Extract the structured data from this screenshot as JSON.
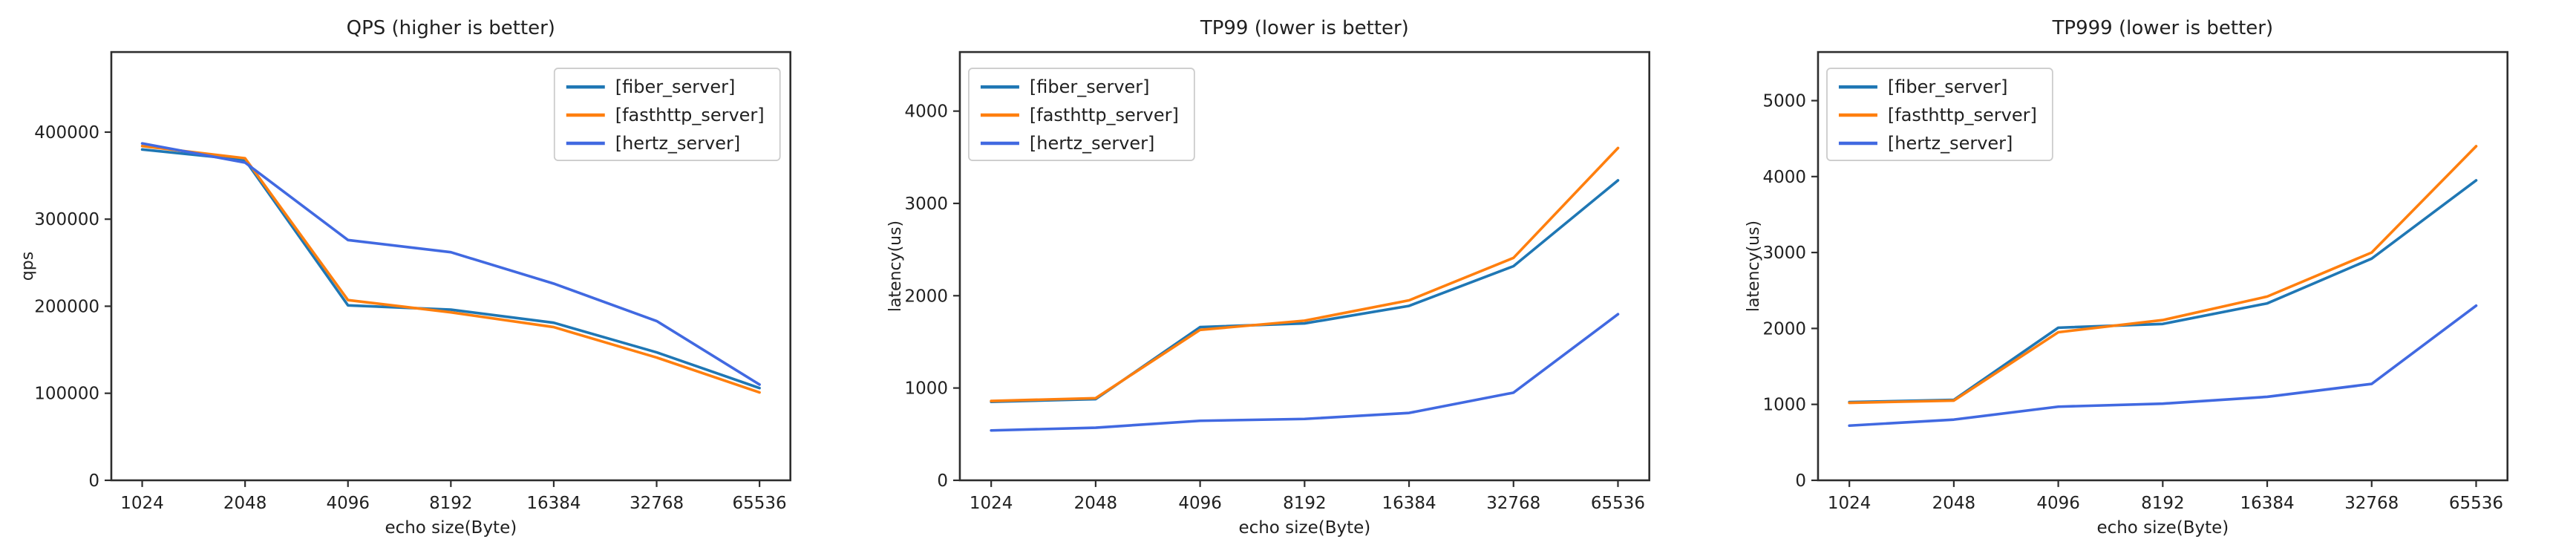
{
  "figure": {
    "background_color": "#ffffff",
    "text_color": "#212121",
    "spine_color": "#2e2e2e"
  },
  "chart_data": [
    {
      "id": "qps",
      "type": "line",
      "title": "QPS (higher is better)",
      "xlabel": "echo size(Byte)",
      "ylabel": "qps",
      "categories": [
        "1024",
        "2048",
        "4096",
        "8192",
        "16384",
        "32768",
        "65536"
      ],
      "yticks": [
        0,
        100000,
        200000,
        300000,
        400000
      ],
      "ylim": [
        0,
        492000
      ],
      "xlim_units": [
        -0.3,
        6.3
      ],
      "grid": false,
      "legend_position": "upper-right",
      "series": [
        {
          "name": "[fiber_server]",
          "color": "#1f77b4",
          "values": [
            380000,
            368000,
            201000,
            196000,
            181000,
            147000,
            106000
          ]
        },
        {
          "name": "[fasthttp_server]",
          "color": "#ff7f0e",
          "values": [
            384000,
            370000,
            207000,
            193000,
            176000,
            141000,
            101000
          ]
        },
        {
          "name": "[hertz_server]",
          "color": "#4169e1",
          "values": [
            387000,
            365000,
            276000,
            262000,
            226000,
            183000,
            110000
          ]
        }
      ]
    },
    {
      "id": "tp99",
      "type": "line",
      "title": "TP99 (lower is better)",
      "xlabel": "echo size(Byte)",
      "ylabel": "latency(us)",
      "categories": [
        "1024",
        "2048",
        "4096",
        "8192",
        "16384",
        "32768",
        "65536"
      ],
      "yticks": [
        0,
        1000,
        2000,
        3000,
        4000
      ],
      "ylim": [
        0,
        4640
      ],
      "xlim_units": [
        -0.3,
        6.3
      ],
      "grid": false,
      "legend_position": "upper-left",
      "series": [
        {
          "name": "[fiber_server]",
          "color": "#1f77b4",
          "values": [
            850,
            880,
            1660,
            1700,
            1890,
            2320,
            3250
          ]
        },
        {
          "name": "[fasthttp_server]",
          "color": "#ff7f0e",
          "values": [
            860,
            890,
            1630,
            1730,
            1950,
            2410,
            3600
          ]
        },
        {
          "name": "[hertz_server]",
          "color": "#4169e1",
          "values": [
            540,
            570,
            645,
            665,
            730,
            950,
            1800
          ]
        }
      ]
    },
    {
      "id": "tp999",
      "type": "line",
      "title": "TP999 (lower is better)",
      "xlabel": "echo size(Byte)",
      "ylabel": "latency(us)",
      "categories": [
        "1024",
        "2048",
        "4096",
        "8192",
        "16384",
        "32768",
        "65536"
      ],
      "yticks": [
        0,
        1000,
        2000,
        3000,
        4000,
        5000
      ],
      "ylim": [
        0,
        5640
      ],
      "xlim_units": [
        -0.3,
        6.3
      ],
      "grid": false,
      "legend_position": "upper-left",
      "series": [
        {
          "name": "[fiber_server]",
          "color": "#1f77b4",
          "values": [
            1030,
            1060,
            2010,
            2060,
            2330,
            2920,
            3950
          ]
        },
        {
          "name": "[fasthttp_server]",
          "color": "#ff7f0e",
          "values": [
            1020,
            1050,
            1950,
            2110,
            2420,
            3000,
            4400
          ]
        },
        {
          "name": "[hertz_server]",
          "color": "#4169e1",
          "values": [
            720,
            800,
            970,
            1010,
            1100,
            1270,
            2300
          ]
        }
      ]
    }
  ]
}
